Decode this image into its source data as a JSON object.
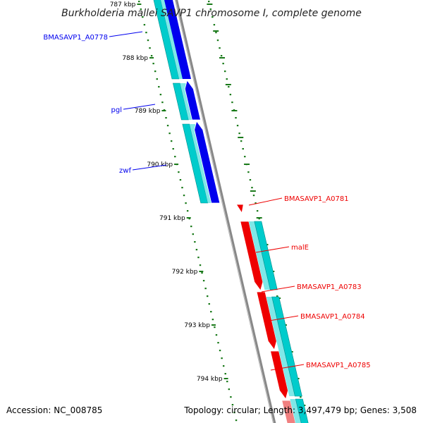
{
  "title": "Burkholderia mallei SAVP1 chromosome I, complete genome",
  "footer": {
    "accession": "Accession: NC_008785",
    "topology": "Topology: circular; Length: 3,497,479 bp; Genes: 3,508"
  },
  "colors": {
    "forward_gene": "#0000ee",
    "reverse_gene": "#ee0000",
    "cds": "#00cccc",
    "backbone": "#888888",
    "tick": "#1a7a1a"
  },
  "kbp_labels": [
    "787 kbp",
    "788 kbp",
    "789 kbp",
    "790 kbp",
    "791 kbp",
    "792 kbp",
    "793 kbp",
    "794 kbp"
  ],
  "left_genes": [
    {
      "name": "BMASAVP1_A0778",
      "strand": "forward"
    },
    {
      "name": "pgl",
      "strand": "forward"
    },
    {
      "name": "zwf",
      "strand": "forward"
    }
  ],
  "right_genes": [
    {
      "name": "BMASAVP1_A0781",
      "strand": "reverse"
    },
    {
      "name": "malE",
      "strand": "reverse"
    },
    {
      "name": "BMASAVP1_A0783",
      "strand": "reverse"
    },
    {
      "name": "BMASAVP1_A0784",
      "strand": "reverse"
    },
    {
      "name": "BMASAVP1_A0785",
      "strand": "reverse"
    }
  ]
}
